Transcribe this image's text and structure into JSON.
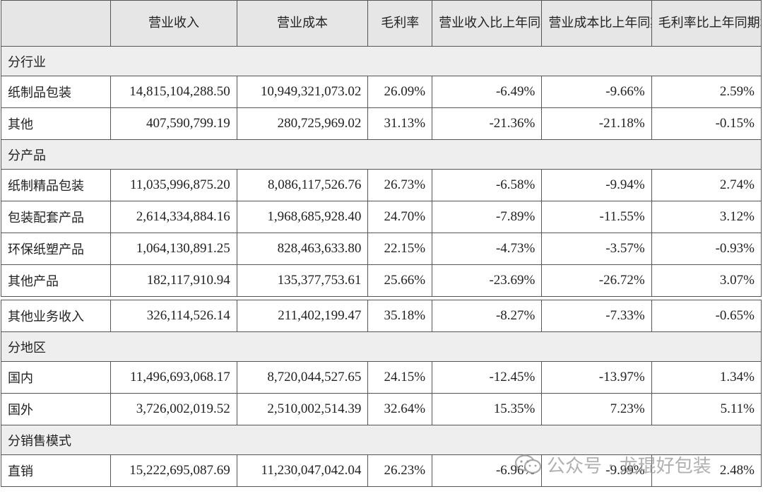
{
  "headers": [
    "",
    "营业收入",
    "营业成本",
    "毛利率",
    "营业收入比上年同期增减",
    "营业成本比上年同期增减",
    "毛利率比上年同期增减"
  ],
  "rows": [
    {
      "kind": "section",
      "label": "分行业"
    },
    {
      "kind": "data",
      "cells": [
        "纸制品包装",
        "14,815,104,288.50",
        "10,949,321,073.02",
        "26.09%",
        "-6.49%",
        "-9.66%",
        "2.59%"
      ]
    },
    {
      "kind": "data",
      "cells": [
        "其他",
        "407,590,799.19",
        "280,725,969.02",
        "31.13%",
        "-21.36%",
        "-21.18%",
        "-0.15%"
      ]
    },
    {
      "kind": "section",
      "label": "分产品"
    },
    {
      "kind": "data",
      "cells": [
        "纸制精品包装",
        "11,035,996,875.20",
        "8,086,117,526.76",
        "26.73%",
        "-6.58%",
        "-9.94%",
        "2.74%"
      ]
    },
    {
      "kind": "data",
      "cells": [
        "包装配套产品",
        "2,614,334,884.16",
        "1,968,685,928.40",
        "24.70%",
        "-7.89%",
        "-11.55%",
        "3.12%"
      ]
    },
    {
      "kind": "data",
      "cells": [
        "环保纸塑产品",
        "1,064,130,891.25",
        "828,463,633.80",
        "22.15%",
        "-4.73%",
        "-3.57%",
        "-0.93%"
      ]
    },
    {
      "kind": "data",
      "cells": [
        "其他产品",
        "182,117,910.94",
        "135,377,753.61",
        "25.66%",
        "-23.69%",
        "-26.72%",
        "3.07%"
      ]
    },
    {
      "kind": "gap"
    },
    {
      "kind": "data",
      "cells": [
        "其他业务收入",
        "326,114,526.14",
        "211,402,199.47",
        "35.18%",
        "-8.27%",
        "-7.33%",
        "-0.65%"
      ]
    },
    {
      "kind": "section",
      "label": "分地区"
    },
    {
      "kind": "data",
      "cells": [
        "国内",
        "11,496,693,068.17",
        "8,720,044,527.65",
        "24.15%",
        "-12.45%",
        "-13.97%",
        "1.34%"
      ]
    },
    {
      "kind": "data",
      "cells": [
        "国外",
        "3,726,002,019.52",
        "2,510,002,514.39",
        "32.64%",
        "15.35%",
        "7.23%",
        "5.11%"
      ]
    },
    {
      "kind": "section",
      "label": "分销售模式"
    },
    {
      "kind": "data",
      "cells": [
        "直销",
        "15,222,695,087.69",
        "11,230,047,042.04",
        "26.23%",
        "-6.96%",
        "-9.99%",
        "2.48%"
      ]
    }
  ],
  "watermark": {
    "text": "公众号 · 龙琨好包装",
    "icon": "wechat-icon"
  }
}
